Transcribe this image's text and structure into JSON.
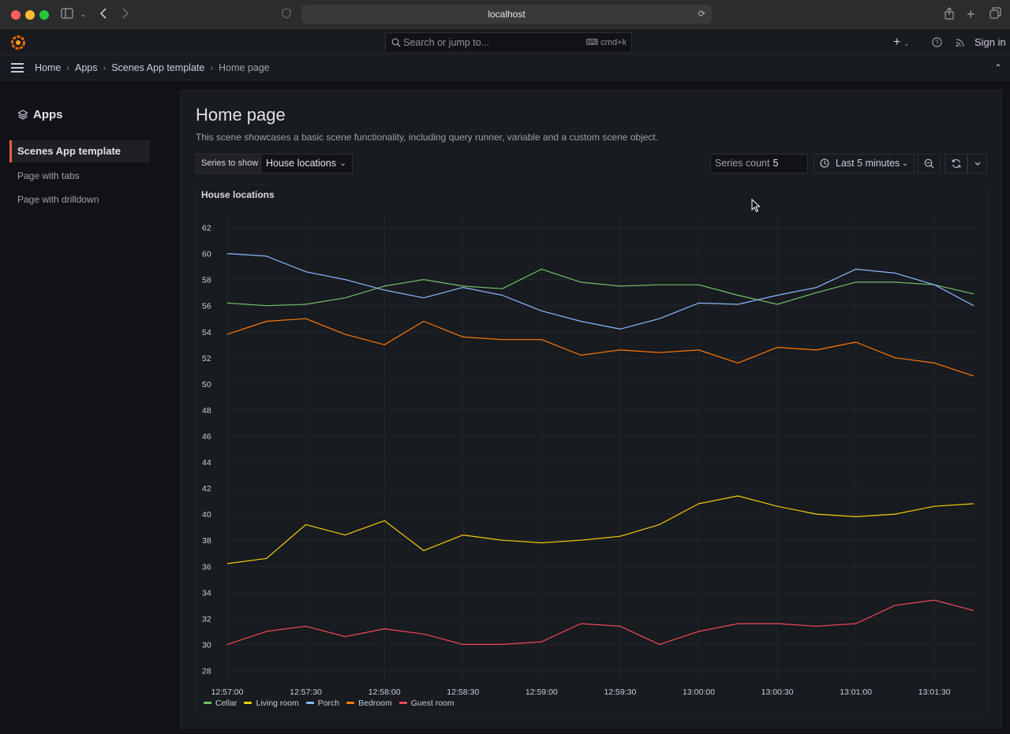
{
  "browser": {
    "url": "localhost"
  },
  "topnav": {
    "search_placeholder": "Search or jump to...",
    "search_shortcut": "cmd+k",
    "new_icon": "plus-icon",
    "help_icon": "help-icon",
    "news_icon": "rss-icon",
    "sign_in": "Sign in"
  },
  "breadcrumb": [
    "Home",
    "Apps",
    "Scenes App template",
    "Home page"
  ],
  "sidebar": {
    "title": "Apps",
    "items": [
      {
        "label": "Scenes App template",
        "active": true
      },
      {
        "label": "Page with tabs",
        "active": false
      },
      {
        "label": "Page with drilldown",
        "active": false
      }
    ]
  },
  "page": {
    "title": "Home page",
    "description": "This scene showcases a basic scene functionality, including query runner, variable and a custom scene object."
  },
  "controls": {
    "variable_label": "Series to show",
    "variable_value": "House locations",
    "series_count_label": "Series count",
    "series_count_value": "5",
    "time_range": "Last 5 minutes"
  },
  "panel": {
    "title": "House locations"
  },
  "chart_data": {
    "type": "line",
    "title": "House locations",
    "xlabel": "",
    "ylabel": "",
    "ylim": [
      27,
      63
    ],
    "y_ticks": [
      28,
      30,
      32,
      34,
      36,
      38,
      40,
      42,
      44,
      46,
      48,
      50,
      52,
      54,
      56,
      58,
      60,
      62
    ],
    "x_ticks": [
      "12:57:00",
      "12:57:30",
      "12:58:00",
      "12:58:30",
      "12:59:00",
      "12:59:30",
      "13:00:00",
      "13:00:30",
      "13:01:00",
      "13:01:30"
    ],
    "x": [
      "12:57:00",
      "12:57:15",
      "12:57:30",
      "12:57:45",
      "12:58:00",
      "12:58:15",
      "12:58:30",
      "12:58:45",
      "12:59:00",
      "12:59:15",
      "12:59:30",
      "12:59:45",
      "13:00:00",
      "13:00:15",
      "13:00:30",
      "13:00:45",
      "13:01:00",
      "13:01:15",
      "13:01:30",
      "13:01:45"
    ],
    "grid": true,
    "legend_placement": "bottom-left",
    "series": [
      {
        "name": "Cellar",
        "color": "#73bf69",
        "values": [
          56.2,
          56.0,
          56.1,
          56.6,
          57.5,
          58.0,
          57.5,
          57.3,
          58.8,
          57.8,
          57.5,
          57.6,
          57.6,
          56.8,
          56.1,
          57.0,
          57.8,
          57.8,
          57.6,
          56.9
        ]
      },
      {
        "name": "Living room",
        "color": "#f2cc0c",
        "values": [
          36.2,
          36.6,
          39.2,
          38.4,
          39.5,
          37.2,
          38.4,
          38.0,
          37.8,
          38.0,
          38.3,
          39.2,
          40.8,
          41.4,
          40.6,
          40.0,
          39.8,
          40.0,
          40.6,
          40.8
        ]
      },
      {
        "name": "Porch",
        "color": "#8ab8ff",
        "values": [
          60.0,
          59.8,
          58.6,
          58.0,
          57.2,
          56.6,
          57.4,
          56.8,
          55.6,
          54.8,
          54.2,
          55.0,
          56.2,
          56.1,
          56.8,
          57.4,
          58.8,
          58.5,
          57.6,
          56.0
        ]
      },
      {
        "name": "Bedroom",
        "color": "#ff780a",
        "values": [
          53.8,
          54.8,
          55.0,
          53.8,
          53.0,
          54.8,
          53.6,
          53.4,
          53.4,
          52.2,
          52.6,
          52.4,
          52.6,
          51.6,
          52.8,
          52.6,
          53.2,
          52.0,
          51.6,
          50.6
        ]
      },
      {
        "name": "Guest room",
        "color": "#f2495c",
        "values": [
          30.0,
          31.0,
          31.4,
          30.6,
          31.2,
          30.8,
          30.0,
          30.0,
          30.2,
          31.6,
          31.4,
          30.0,
          31.0,
          31.6,
          31.6,
          31.4,
          31.6,
          33.0,
          33.4,
          32.6
        ]
      }
    ]
  }
}
